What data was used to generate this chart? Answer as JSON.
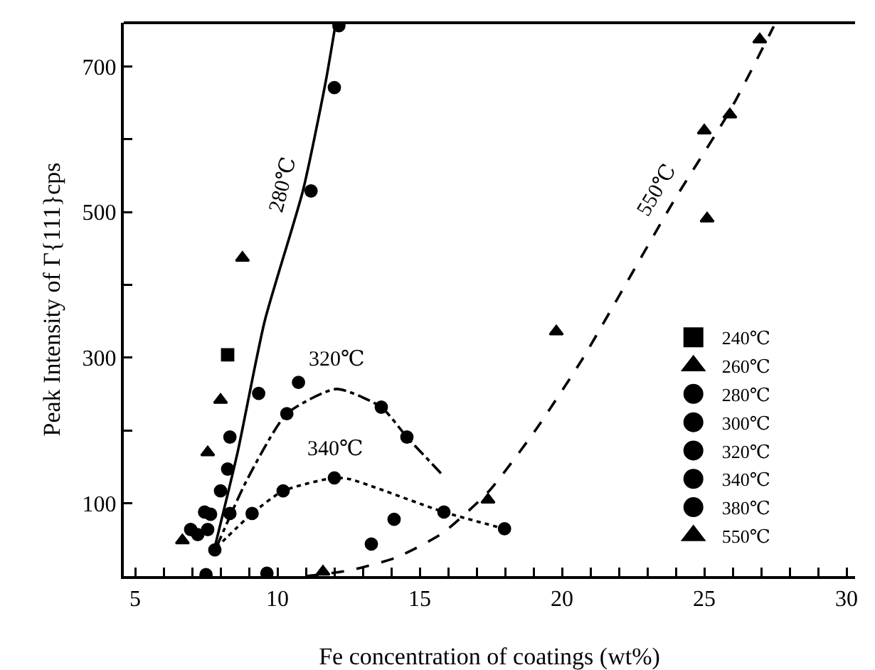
{
  "chart_data": {
    "type": "scatter",
    "xlabel": "Fe concentration of coatings (wt%)",
    "ylabel": "Peak Intensity of Γ{111}cps",
    "xlim": [
      4.6,
      30.3
    ],
    "ylim": [
      0,
      760
    ],
    "xticks": [
      5,
      {
        "value": 6,
        "label": null
      },
      {
        "value": 7,
        "label": null
      },
      {
        "value": 8,
        "label": null
      },
      {
        "value": 9,
        "label": null
      },
      10,
      {
        "value": 11,
        "label": null
      },
      {
        "value": 12,
        "label": null
      },
      {
        "value": 13,
        "label": null
      },
      {
        "value": 14,
        "label": null
      },
      15,
      {
        "value": 16,
        "label": null
      },
      {
        "value": 17,
        "label": null
      },
      {
        "value": 18,
        "label": null
      },
      {
        "value": 19,
        "label": null
      },
      20,
      {
        "value": 21,
        "label": null
      },
      {
        "value": 22,
        "label": null
      },
      {
        "value": 23,
        "label": null
      },
      {
        "value": 24,
        "label": null
      },
      25,
      {
        "value": 26,
        "label": null
      },
      {
        "value": 27,
        "label": null
      },
      {
        "value": 28,
        "label": null
      },
      {
        "value": 29,
        "label": null
      },
      30
    ],
    "yticks": [
      100,
      {
        "value": 200,
        "label": null
      },
      300,
      {
        "value": 400,
        "label": null
      },
      500,
      {
        "value": 600,
        "label": null
      },
      700
    ],
    "grid": false,
    "legend": "bottom right",
    "series": [
      {
        "name": "240℃",
        "color": "#000000",
        "marker": "square",
        "x": [
          8.25
        ],
        "values": [
          304
        ]
      },
      {
        "name": "260℃",
        "color": "#000000",
        "marker": "triangle",
        "x": [
          8.0,
          7.55,
          8.77,
          6.66
        ],
        "values": [
          242,
          170,
          437,
          49
        ]
      },
      {
        "name": "280℃",
        "color": "#000000",
        "marker": "circle",
        "x": [
          9.34,
          8.33,
          8.0,
          7.44,
          6.95,
          7.2,
          7.55,
          7.8,
          12.0,
          12.16
        ],
        "values": [
          251,
          191,
          117,
          88,
          64,
          57,
          64,
          36,
          671,
          756
        ]
      },
      {
        "name": "300℃",
        "color": "#000000",
        "marker": "circle",
        "x": [
          11.18,
          8.25,
          7.65
        ],
        "values": [
          529,
          147,
          85
        ]
      },
      {
        "name": "320℃",
        "color": "#000000",
        "marker": "circle",
        "x": [
          10.74,
          10.33,
          8.33,
          13.65,
          14.55
        ],
        "values": [
          266,
          223,
          86,
          232,
          191
        ]
      },
      {
        "name": "340℃",
        "color": "#000000",
        "marker": "circle",
        "x": [
          9.11,
          10.2,
          12.0,
          14.1,
          15.85,
          17.98
        ],
        "values": [
          86,
          117,
          135,
          78,
          88,
          65
        ]
      },
      {
        "name": "380℃",
        "color": "#000000",
        "marker": "circle",
        "x": [
          7.49,
          9.63,
          13.3
        ],
        "values": [
          2,
          4,
          44
        ]
      },
      {
        "name": "550℃",
        "color": "#000000",
        "marker": "triangle",
        "x": [
          26.95,
          25.9,
          25.0,
          25.1,
          19.8,
          17.4,
          11.6
        ],
        "values": [
          737,
          634,
          612,
          491,
          336,
          105,
          6
        ]
      },
      {
        "type": "line",
        "color": "#000000",
        "marker": "none",
        "line_style": "solid",
        "x": [
          7.8,
          8.6,
          9.55,
          10.9,
          11.7,
          12.05
        ],
        "values": [
          40,
          170,
          350,
          530,
          680,
          760
        ]
      },
      {
        "type": "line",
        "color": "#000000",
        "marker": "none",
        "line_style": "dashdot",
        "x": [
          7.85,
          8.9,
          10.33,
          12.07,
          13.65,
          14.55,
          15.8
        ],
        "values": [
          39,
          130,
          223,
          257,
          232,
          191,
          139
        ]
      },
      {
        "type": "line",
        "color": "#000000",
        "marker": "none",
        "line_style": "dotted",
        "x": [
          7.85,
          9.11,
          10.2,
          12.0,
          12.56,
          15.85,
          17.98
        ],
        "values": [
          39,
          86,
          117,
          135,
          133,
          88,
          65
        ]
      },
      {
        "type": "line",
        "color": "#000000",
        "marker": "none",
        "line_style": "dashed",
        "x": [
          11.0,
          12.56,
          14.2,
          15.8,
          17.44,
          19.06,
          20.7,
          21.67,
          23.94,
          25.9,
          27.44
        ],
        "values": [
          0,
          8,
          26,
          59,
          117,
          200,
          297,
          362,
          516,
          639,
          755
        ]
      }
    ],
    "annotations": [
      {
        "text": "280℃",
        "x": 10.9,
        "y": 530
      },
      {
        "text": "320℃",
        "x": 12.07,
        "y": 257
      },
      {
        "text": "340℃",
        "x": 12.0,
        "y": 135
      },
      {
        "text": "550℃",
        "x": 23.94,
        "y": 516
      }
    ]
  }
}
